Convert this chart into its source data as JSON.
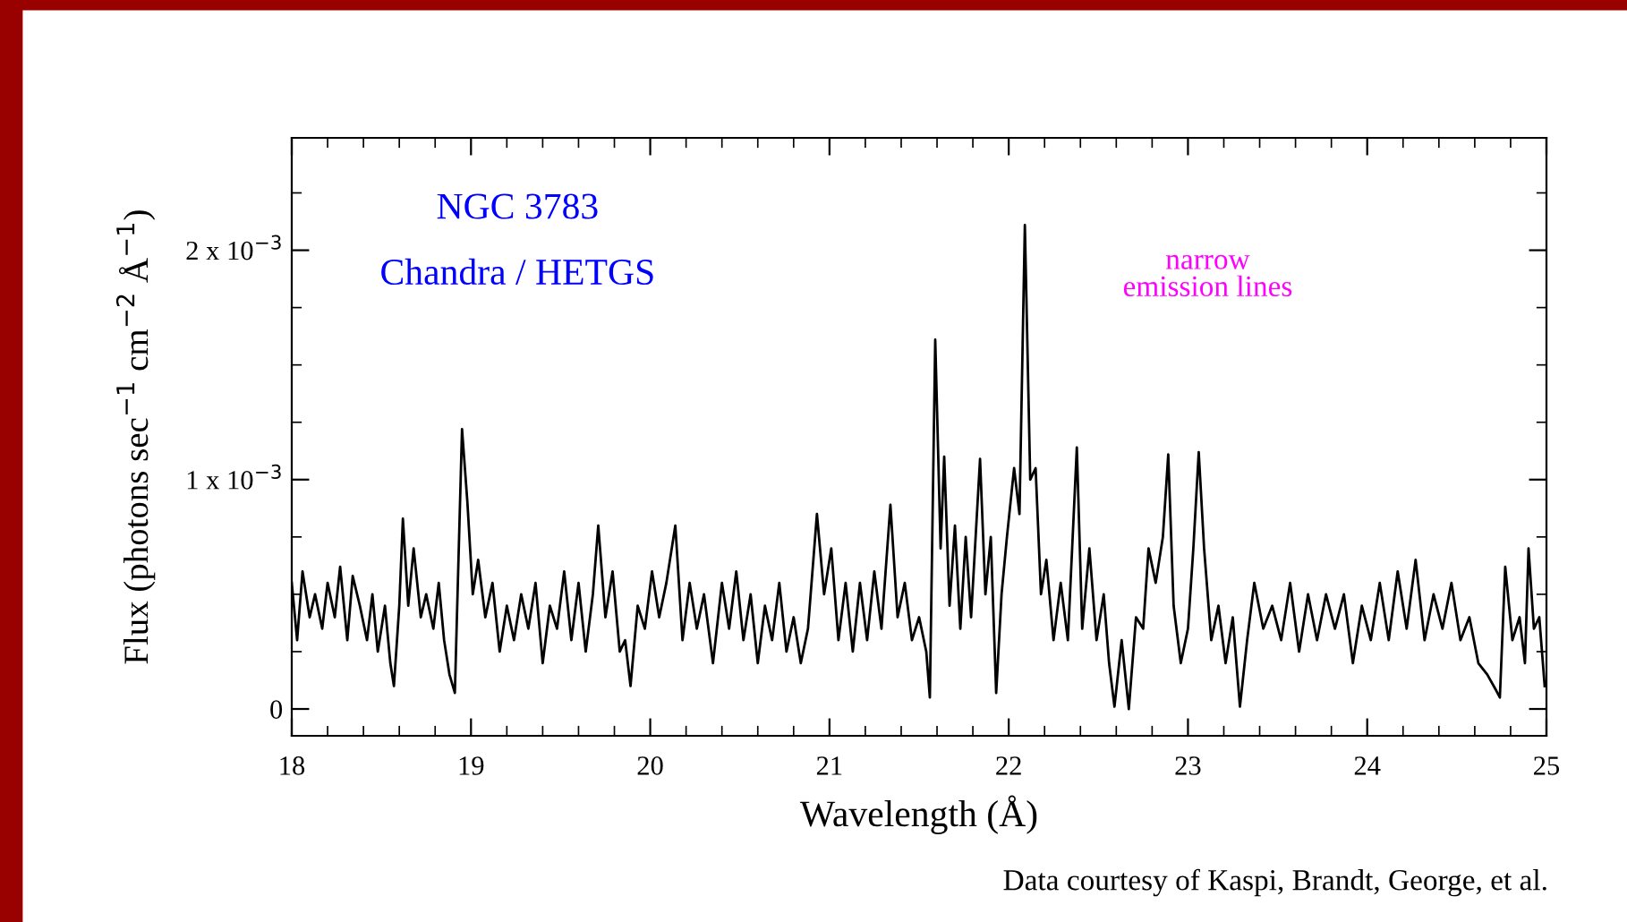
{
  "chart_data": {
    "type": "line",
    "xlabel": "Wavelength (Å)",
    "ylabel": "Flux (photons sec$^{−1}$ cm$^{−2}$ Å$^{−1}$)",
    "annotations": [
      "NGC 3783",
      "Chandra / HETGS",
      "narrow\nemission lines",
      "Data courtesy of Kaspi, Brandt, George, et al."
    ],
    "xlim": [
      18,
      25
    ],
    "xticks": [
      18,
      19,
      20,
      21,
      22,
      23,
      24,
      25
    ],
    "ylim": [
      -0.000117,
      0.00249
    ],
    "yticks": [
      {
        "value": 0,
        "label": "0"
      },
      {
        "value": 0.001,
        "label": "1 x 10$^{−3}$"
      },
      {
        "value": 0.002,
        "label": "2 x 10$^{−3}$"
      }
    ],
    "grid": false,
    "legend": false,
    "marker": "none",
    "line_style": "solid",
    "series": [
      {
        "color": "#000000",
        "x": [
          18.0,
          18.03,
          18.06,
          18.1,
          18.13,
          18.17,
          18.2,
          18.24,
          18.27,
          18.31,
          18.34,
          18.38,
          18.42,
          18.45,
          18.48,
          18.52,
          18.55,
          18.57,
          18.6,
          18.62,
          18.65,
          18.68,
          18.72,
          18.75,
          18.79,
          18.82,
          18.85,
          18.88,
          18.91,
          18.95,
          18.98,
          19.01,
          19.04,
          19.08,
          19.12,
          19.16,
          19.2,
          19.24,
          19.28,
          19.32,
          19.36,
          19.4,
          19.44,
          19.48,
          19.52,
          19.56,
          19.6,
          19.64,
          19.68,
          19.71,
          19.75,
          19.79,
          19.83,
          19.86,
          19.89,
          19.93,
          19.97,
          20.01,
          20.05,
          20.09,
          20.14,
          20.18,
          20.22,
          20.26,
          20.3,
          20.35,
          20.4,
          20.44,
          20.48,
          20.52,
          20.56,
          20.6,
          20.64,
          20.68,
          20.72,
          20.76,
          20.8,
          20.84,
          20.88,
          20.93,
          20.97,
          21.01,
          21.05,
          21.09,
          21.13,
          21.17,
          21.21,
          21.25,
          21.29,
          21.34,
          21.38,
          21.42,
          21.46,
          21.5,
          21.54,
          21.56,
          21.59,
          21.62,
          21.64,
          21.67,
          21.7,
          21.73,
          21.76,
          21.79,
          21.84,
          21.87,
          21.9,
          21.93,
          21.96,
          21.99,
          22.03,
          22.06,
          22.09,
          22.12,
          22.15,
          22.18,
          22.21,
          22.25,
          22.29,
          22.33,
          22.38,
          22.41,
          22.45,
          22.49,
          22.53,
          22.56,
          22.59,
          22.63,
          22.67,
          22.71,
          22.75,
          22.78,
          22.82,
          22.86,
          22.89,
          22.92,
          22.96,
          23.0,
          23.03,
          23.06,
          23.09,
          23.13,
          23.17,
          23.21,
          23.25,
          23.29,
          23.33,
          23.37,
          23.42,
          23.47,
          23.52,
          23.57,
          23.62,
          23.67,
          23.72,
          23.77,
          23.82,
          23.87,
          23.92,
          23.97,
          24.02,
          24.07,
          24.12,
          24.17,
          24.22,
          24.27,
          24.32,
          24.37,
          24.42,
          24.47,
          24.52,
          24.57,
          24.62,
          24.67,
          24.72,
          24.74,
          24.77,
          24.81,
          24.85,
          24.88,
          24.9,
          24.93,
          24.96,
          24.99
        ],
        "values": [
          0.00055,
          0.0003,
          0.0006,
          0.0004,
          0.0005,
          0.00035,
          0.00055,
          0.0004,
          0.00062,
          0.0003,
          0.00058,
          0.00045,
          0.0003,
          0.0005,
          0.00025,
          0.00045,
          0.0002,
          0.0001,
          0.00045,
          0.00083,
          0.00045,
          0.0007,
          0.0004,
          0.0005,
          0.00035,
          0.00055,
          0.0003,
          0.00015,
          7e-05,
          0.00122,
          0.0009,
          0.0005,
          0.00065,
          0.0004,
          0.00055,
          0.00025,
          0.00045,
          0.0003,
          0.0005,
          0.00035,
          0.00055,
          0.0002,
          0.00045,
          0.00035,
          0.0006,
          0.0003,
          0.00055,
          0.00025,
          0.0005,
          0.0008,
          0.0004,
          0.0006,
          0.00025,
          0.0003,
          0.0001,
          0.00045,
          0.00035,
          0.0006,
          0.0004,
          0.00055,
          0.0008,
          0.0003,
          0.00055,
          0.00035,
          0.0005,
          0.0002,
          0.00055,
          0.00035,
          0.0006,
          0.0003,
          0.0005,
          0.0002,
          0.00045,
          0.0003,
          0.00055,
          0.00025,
          0.0004,
          0.0002,
          0.00035,
          0.00085,
          0.0005,
          0.0007,
          0.0003,
          0.00055,
          0.00025,
          0.00055,
          0.0003,
          0.0006,
          0.00035,
          0.00089,
          0.0004,
          0.00055,
          0.0003,
          0.0004,
          0.00025,
          5e-05,
          0.00161,
          0.0007,
          0.0011,
          0.00045,
          0.0008,
          0.00035,
          0.00075,
          0.0004,
          0.00109,
          0.0005,
          0.00075,
          7e-05,
          0.0005,
          0.00075,
          0.00105,
          0.00085,
          0.00211,
          0.001,
          0.00105,
          0.0005,
          0.00065,
          0.0003,
          0.00055,
          0.0003,
          0.00114,
          0.00035,
          0.0007,
          0.0003,
          0.0005,
          0.0002,
          1e-05,
          0.0003,
          0.0,
          0.0004,
          0.00035,
          0.0007,
          0.00055,
          0.00075,
          0.00111,
          0.00045,
          0.0002,
          0.00035,
          0.0007,
          0.00112,
          0.0007,
          0.0003,
          0.00045,
          0.0002,
          0.0004,
          1e-05,
          0.0003,
          0.00055,
          0.00035,
          0.00045,
          0.0003,
          0.00055,
          0.00025,
          0.0005,
          0.0003,
          0.0005,
          0.00035,
          0.0005,
          0.0002,
          0.00045,
          0.0003,
          0.00055,
          0.0003,
          0.0006,
          0.00035,
          0.00065,
          0.0003,
          0.0005,
          0.00035,
          0.00055,
          0.0003,
          0.0004,
          0.0002,
          0.00015,
          8e-05,
          5e-05,
          0.00062,
          0.0003,
          0.0004,
          0.0002,
          0.0007,
          0.00035,
          0.0004,
          0.0001
        ]
      }
    ]
  }
}
